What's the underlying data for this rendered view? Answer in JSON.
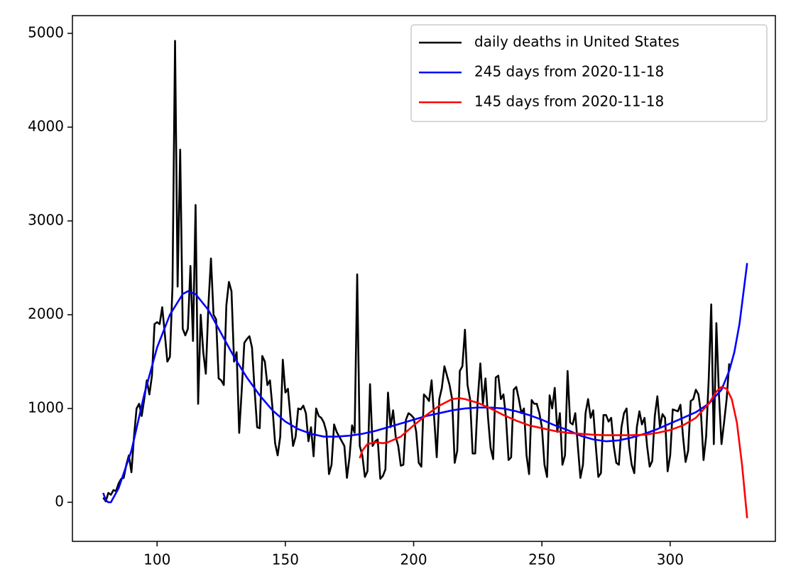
{
  "chart_data": {
    "type": "line",
    "series": [
      {
        "name": "daily deaths in United States",
        "color": "#000000",
        "x": [
          79,
          80,
          81,
          82,
          83,
          84,
          85,
          86,
          87,
          88,
          89,
          90,
          91,
          92,
          93,
          94,
          95,
          96,
          97,
          98,
          99,
          100,
          101,
          102,
          103,
          104,
          105,
          106,
          107,
          108,
          109,
          110,
          111,
          112,
          113,
          114,
          115,
          116,
          117,
          118,
          119,
          120,
          121,
          122,
          123,
          124,
          125,
          126,
          127,
          128,
          129,
          130,
          131,
          132,
          133,
          134,
          135,
          136,
          137,
          138,
          139,
          140,
          141,
          142,
          143,
          144,
          145,
          146,
          147,
          148,
          149,
          150,
          151,
          152,
          153,
          154,
          155,
          156,
          157,
          158,
          159,
          160,
          161,
          162,
          163,
          164,
          165,
          166,
          167,
          168,
          169,
          170,
          171,
          172,
          173,
          174,
          175,
          176,
          177,
          178,
          179,
          180,
          181,
          182,
          183,
          184,
          185,
          186,
          187,
          188,
          189,
          190,
          191,
          192,
          193,
          194,
          195,
          196,
          197,
          198,
          199,
          200,
          201,
          202,
          203,
          204,
          205,
          206,
          207,
          208,
          209,
          210,
          211,
          212,
          213,
          214,
          215,
          216,
          217,
          218,
          219,
          220,
          221,
          222,
          223,
          224,
          225,
          226,
          227,
          228,
          229,
          230,
          231,
          232,
          233,
          234,
          235,
          236,
          237,
          238,
          239,
          240,
          241,
          242,
          243,
          244,
          245,
          246,
          247,
          248,
          249,
          250,
          251,
          252,
          253,
          254,
          255,
          256,
          257,
          258,
          259,
          260,
          261,
          262,
          263,
          264,
          265,
          266,
          267,
          268,
          269,
          270,
          271,
          272,
          273,
          274,
          275,
          276,
          277,
          278,
          279,
          280,
          281,
          282,
          283,
          284,
          285,
          286,
          287,
          288,
          289,
          290,
          291,
          292,
          293,
          294,
          295,
          296,
          297,
          298,
          299,
          300,
          301,
          302,
          303,
          304,
          305,
          306,
          307,
          308,
          309,
          310,
          311,
          312,
          313,
          314,
          315,
          316,
          317,
          318,
          319,
          320,
          321,
          322,
          323
        ],
        "values": [
          50,
          10,
          100,
          80,
          130,
          120,
          200,
          250,
          260,
          400,
          500,
          320,
          700,
          1000,
          1050,
          920,
          1100,
          1300,
          1150,
          1350,
          1900,
          1920,
          1900,
          2080,
          1800,
          1500,
          1550,
          2300,
          4920,
          2300,
          3760,
          1850,
          1780,
          1850,
          2520,
          1720,
          3170,
          1050,
          2000,
          1600,
          1370,
          2100,
          2600,
          2000,
          1950,
          1320,
          1300,
          1250,
          2100,
          2350,
          2250,
          1500,
          1600,
          740,
          1200,
          1700,
          1740,
          1770,
          1650,
          1200,
          800,
          790,
          1560,
          1500,
          1250,
          1300,
          1000,
          630,
          500,
          700,
          1520,
          1170,
          1210,
          900,
          600,
          700,
          1000,
          990,
          1030,
          950,
          650,
          800,
          490,
          1000,
          920,
          900,
          850,
          750,
          300,
          400,
          830,
          750,
          700,
          650,
          600,
          260,
          480,
          820,
          740,
          2430,
          600,
          500,
          270,
          330,
          1260,
          600,
          650,
          670,
          250,
          280,
          350,
          1170,
          800,
          980,
          700,
          600,
          390,
          400,
          880,
          950,
          930,
          900,
          750,
          420,
          380,
          1150,
          1120,
          1080,
          1300,
          900,
          480,
          1100,
          1220,
          1450,
          1350,
          1250,
          1100,
          420,
          550,
          1400,
          1450,
          1840,
          1250,
          1100,
          520,
          520,
          1100,
          1480,
          1050,
          1320,
          900,
          580,
          460,
          1330,
          1350,
          1100,
          1150,
          900,
          450,
          480,
          1200,
          1230,
          1100,
          950,
          1000,
          500,
          300,
          1090,
          1050,
          1050,
          950,
          800,
          400,
          270,
          1140,
          1000,
          1220,
          750,
          950,
          400,
          500,
          1400,
          850,
          830,
          950,
          600,
          260,
          400,
          950,
          1100,
          900,
          980,
          600,
          270,
          310,
          930,
          930,
          860,
          900,
          600,
          420,
          400,
          800,
          950,
          1000,
          600,
          400,
          310,
          800,
          970,
          830,
          900,
          600,
          380,
          440,
          920,
          1130,
          800,
          940,
          900,
          330,
          500,
          990,
          980,
          970,
          1040,
          700,
          430,
          550,
          1080,
          1100,
          1200,
          1150,
          950,
          450,
          700,
          1300,
          2110,
          620,
          1910,
          1150,
          620,
          850,
          1100,
          1480
        ]
      },
      {
        "name": "245 days from 2020-11-18",
        "color": "#0000ff",
        "x": [
          79,
          80,
          81,
          82,
          83,
          85,
          90,
          95,
          100,
          105,
          110,
          112,
          115,
          120,
          125,
          130,
          135,
          140,
          145,
          150,
          155,
          160,
          165,
          170,
          175,
          180,
          185,
          190,
          195,
          200,
          205,
          210,
          215,
          220,
          225,
          230,
          235,
          240,
          245,
          250,
          255,
          260,
          265,
          270,
          275,
          280,
          285,
          290,
          295,
          300,
          305,
          310,
          315,
          320,
          323,
          325,
          327,
          330
        ],
        "values": [
          100,
          20,
          0,
          0,
          50,
          150,
          550,
          1150,
          1650,
          2000,
          2220,
          2250,
          2220,
          2050,
          1800,
          1550,
          1330,
          1140,
          980,
          860,
          780,
          730,
          700,
          700,
          710,
          730,
          760,
          800,
          840,
          880,
          920,
          950,
          980,
          1000,
          1010,
          1010,
          1000,
          970,
          930,
          880,
          820,
          770,
          710,
          670,
          650,
          660,
          690,
          730,
          780,
          840,
          900,
          960,
          1050,
          1200,
          1400,
          1600,
          1900,
          2550
        ]
      },
      {
        "name": "145 days from 2020-11-18",
        "color": "#ff0000",
        "x": [
          179,
          180,
          182,
          185,
          188,
          190,
          195,
          200,
          205,
          210,
          215,
          218,
          220,
          225,
          230,
          235,
          240,
          245,
          250,
          255,
          260,
          265,
          270,
          275,
          280,
          285,
          290,
          295,
          300,
          305,
          310,
          315,
          318,
          320,
          322,
          324,
          326,
          328,
          330
        ],
        "values": [
          470,
          550,
          620,
          640,
          630,
          640,
          700,
          820,
          930,
          1030,
          1100,
          1110,
          1100,
          1060,
          1000,
          930,
          870,
          820,
          790,
          760,
          740,
          730,
          720,
          715,
          715,
          715,
          720,
          740,
          770,
          820,
          900,
          1050,
          1180,
          1230,
          1210,
          1100,
          850,
          400,
          -170
        ]
      }
    ],
    "xlim": [
      67,
      341
    ],
    "ylim": [
      -417,
      5189
    ],
    "xticks": [
      100,
      150,
      200,
      250,
      300
    ],
    "yticks": [
      0,
      1000,
      2000,
      3000,
      4000,
      5000
    ],
    "legend": "upper right"
  }
}
